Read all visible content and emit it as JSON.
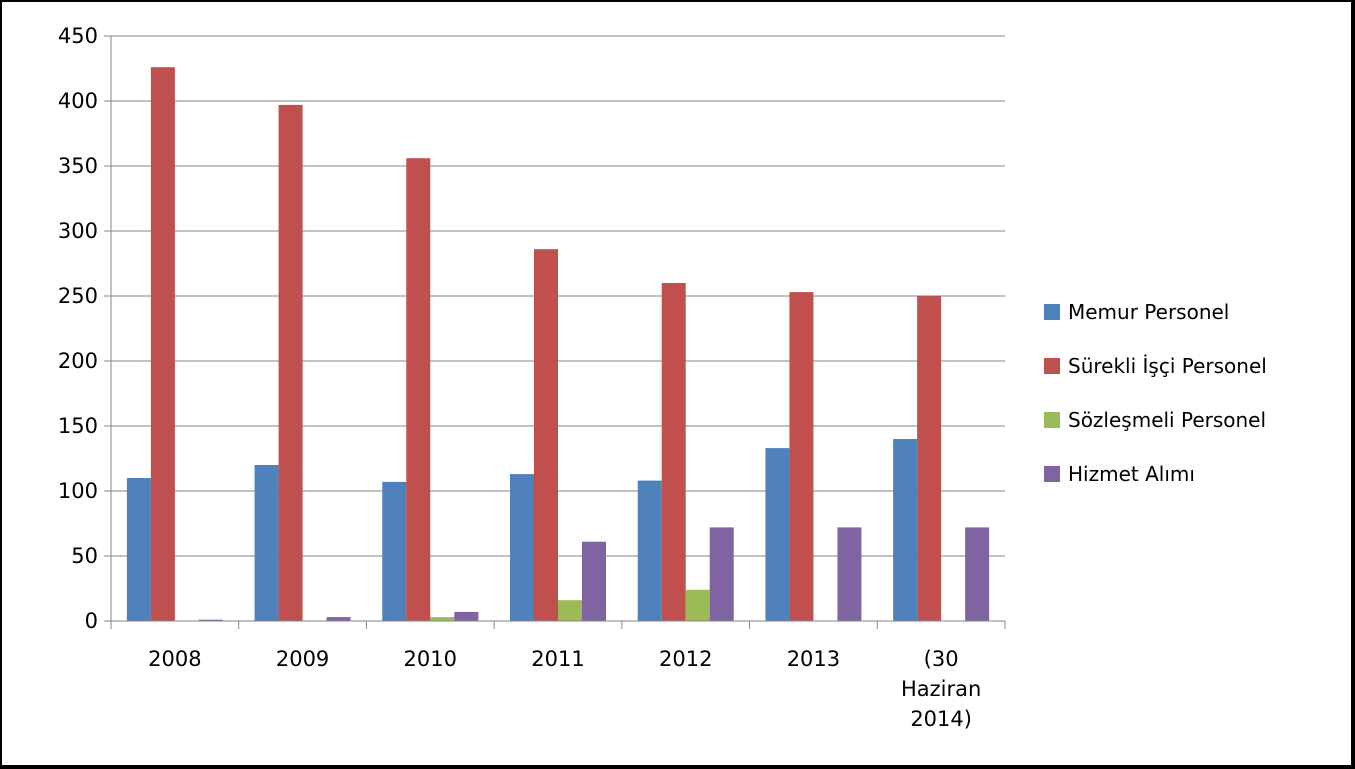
{
  "chart_data": {
    "type": "bar",
    "title": "",
    "xlabel": "",
    "ylabel": "",
    "ylim": [
      0,
      450
    ],
    "y_ticks": [
      0,
      50,
      100,
      150,
      200,
      250,
      300,
      350,
      400,
      450
    ],
    "grid": true,
    "legend_position": "right",
    "categories": [
      [
        "2008"
      ],
      [
        "2009"
      ],
      [
        "2010"
      ],
      [
        "2011"
      ],
      [
        "2012"
      ],
      [
        "2013"
      ],
      [
        "(30",
        "Haziran",
        "2014)"
      ]
    ],
    "series": [
      {
        "name": "Memur Personel",
        "color": "#4F81BD",
        "values": [
          110,
          120,
          107,
          113,
          108,
          133,
          140
        ]
      },
      {
        "name": "Sürekli İşçi Personel",
        "color": "#C0504D",
        "values": [
          426,
          397,
          356,
          286,
          260,
          253,
          250
        ]
      },
      {
        "name": "Sözleşmeli Personel",
        "color": "#9BBB59",
        "values": [
          0,
          0,
          3,
          16,
          24,
          0,
          0
        ]
      },
      {
        "name": "Hizmet Alımı",
        "color": "#8064A2",
        "values": [
          1,
          3,
          7,
          61,
          72,
          72,
          72
        ]
      }
    ]
  }
}
